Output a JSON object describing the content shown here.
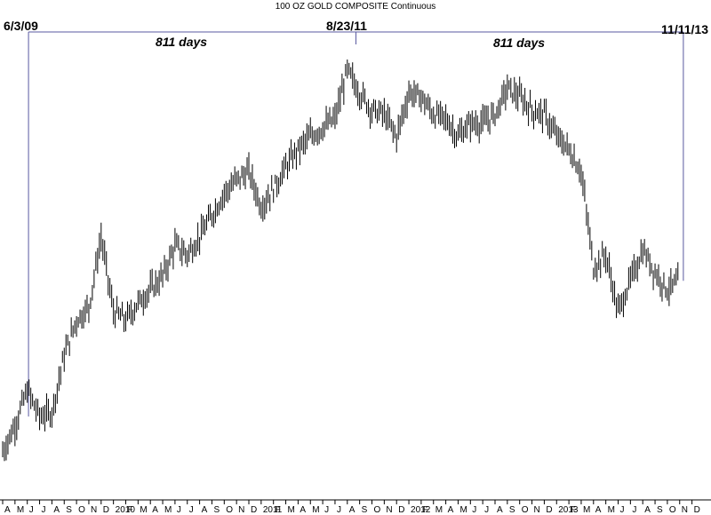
{
  "chart_data": {
    "type": "line",
    "title": "100 OZ GOLD COMPOSITE Continuous",
    "xlabel": "",
    "ylabel": "",
    "grid": false,
    "x_ticks": [
      {
        "label": "A",
        "month": 0
      },
      {
        "label": "M",
        "month": 1
      },
      {
        "label": "J",
        "month": 2
      },
      {
        "label": "J",
        "month": 3
      },
      {
        "label": "A",
        "month": 4
      },
      {
        "label": "S",
        "month": 5
      },
      {
        "label": "O",
        "month": 6
      },
      {
        "label": "N",
        "month": 7
      },
      {
        "label": "D",
        "month": 8
      },
      {
        "label": "2010",
        "month": 9
      },
      {
        "label": "F",
        "month": 10
      },
      {
        "label": "M",
        "month": 11
      },
      {
        "label": "A",
        "month": 12
      },
      {
        "label": "M",
        "month": 13
      },
      {
        "label": "J",
        "month": 14
      },
      {
        "label": "J",
        "month": 15
      },
      {
        "label": "A",
        "month": 16
      },
      {
        "label": "S",
        "month": 17
      },
      {
        "label": "O",
        "month": 18
      },
      {
        "label": "N",
        "month": 19
      },
      {
        "label": "D",
        "month": 20
      },
      {
        "label": "2011",
        "month": 21
      },
      {
        "label": "F",
        "month": 22
      },
      {
        "label": "M",
        "month": 23
      },
      {
        "label": "A",
        "month": 24
      },
      {
        "label": "M",
        "month": 25
      },
      {
        "label": "J",
        "month": 26
      },
      {
        "label": "J",
        "month": 27
      },
      {
        "label": "A",
        "month": 28
      },
      {
        "label": "S",
        "month": 29
      },
      {
        "label": "O",
        "month": 30
      },
      {
        "label": "N",
        "month": 31
      },
      {
        "label": "D",
        "month": 32
      },
      {
        "label": "2012",
        "month": 33
      },
      {
        "label": "F",
        "month": 34
      },
      {
        "label": "M",
        "month": 35
      },
      {
        "label": "A",
        "month": 36
      },
      {
        "label": "M",
        "month": 37
      },
      {
        "label": "J",
        "month": 38
      },
      {
        "label": "J",
        "month": 39
      },
      {
        "label": "A",
        "month": 40
      },
      {
        "label": "S",
        "month": 41
      },
      {
        "label": "O",
        "month": 42
      },
      {
        "label": "N",
        "month": 43
      },
      {
        "label": "D",
        "month": 44
      },
      {
        "label": "2013",
        "month": 45
      },
      {
        "label": "F",
        "month": 46
      },
      {
        "label": "M",
        "month": 47
      },
      {
        "label": "A",
        "month": 48
      },
      {
        "label": "M",
        "month": 49
      },
      {
        "label": "J",
        "month": 50
      },
      {
        "label": "J",
        "month": 51
      },
      {
        "label": "A",
        "month": 52
      },
      {
        "label": "S",
        "month": 53
      },
      {
        "label": "O",
        "month": 54
      },
      {
        "label": "N",
        "month": 55
      },
      {
        "label": "D",
        "month": 56
      }
    ],
    "annotations": {
      "start_date": "6/3/09",
      "peak_date": "8/23/11",
      "end_date": "11/11/13",
      "span_left": "811 days",
      "span_right": "811 days"
    },
    "series": [
      {
        "values": [
          [
            0,
            8
          ],
          [
            1,
            14
          ],
          [
            2,
            22
          ],
          [
            3,
            16
          ],
          [
            4,
            17
          ],
          [
            5,
            30
          ],
          [
            6,
            38
          ],
          [
            7,
            41
          ],
          [
            8,
            57
          ],
          [
            9,
            40
          ],
          [
            10,
            38
          ],
          [
            11,
            42
          ],
          [
            12,
            45
          ],
          [
            13,
            48
          ],
          [
            14,
            55
          ],
          [
            15,
            53
          ],
          [
            16,
            57
          ],
          [
            17,
            62
          ],
          [
            18,
            67
          ],
          [
            19,
            70
          ],
          [
            20,
            72
          ],
          [
            21,
            64
          ],
          [
            22,
            68
          ],
          [
            23,
            73
          ],
          [
            24,
            77
          ],
          [
            25,
            80
          ],
          [
            26,
            82
          ],
          [
            27,
            84
          ],
          [
            28,
            95
          ],
          [
            29,
            90
          ],
          [
            30,
            86
          ],
          [
            31,
            85
          ],
          [
            32,
            80
          ],
          [
            33,
            90
          ],
          [
            34,
            89
          ],
          [
            35,
            85
          ],
          [
            36,
            84
          ],
          [
            37,
            80
          ],
          [
            38,
            83
          ],
          [
            39,
            83
          ],
          [
            40,
            85
          ],
          [
            41,
            91
          ],
          [
            42,
            89
          ],
          [
            43,
            86
          ],
          [
            44,
            85
          ],
          [
            45,
            80
          ],
          [
            46,
            77
          ],
          [
            47,
            72
          ],
          [
            48,
            50
          ],
          [
            49,
            53
          ],
          [
            50,
            40
          ],
          [
            51,
            47
          ],
          [
            52,
            54
          ],
          [
            53,
            49
          ],
          [
            54,
            45
          ],
          [
            55,
            47
          ]
        ]
      }
    ]
  }
}
